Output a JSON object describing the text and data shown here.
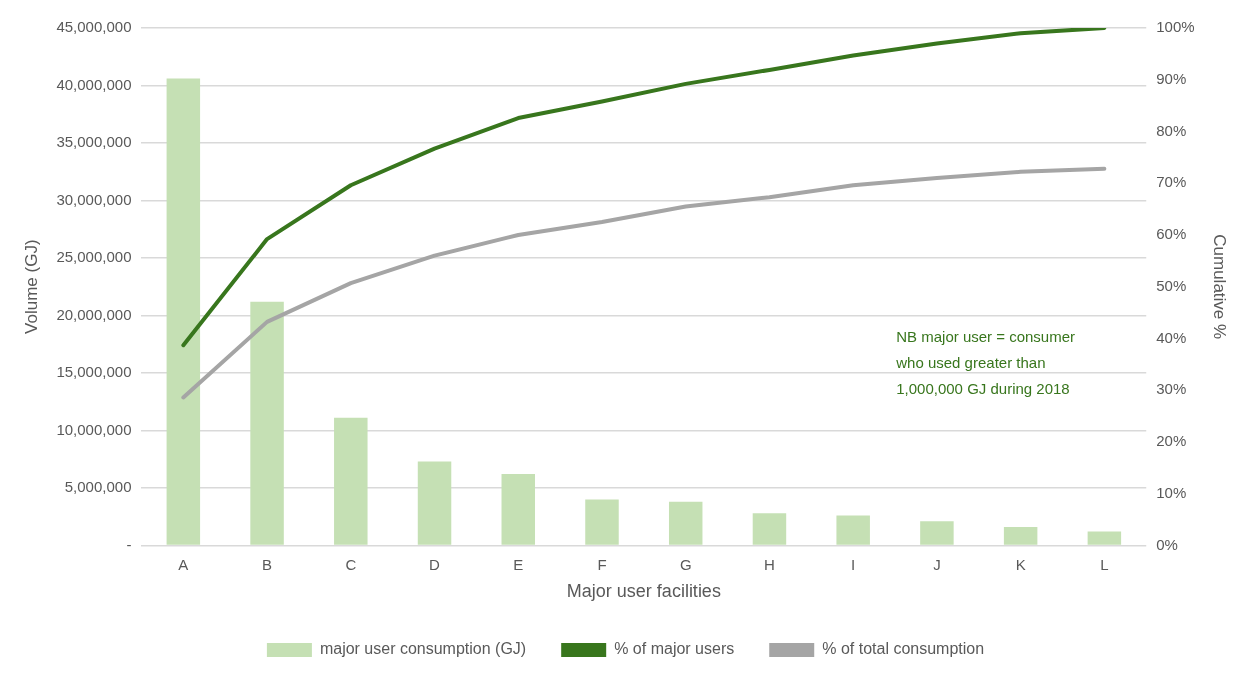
{
  "chart_data": {
    "type": "bar",
    "xlabel": "Major user facilities",
    "ylabel": "Volume (GJ)",
    "y2label": "Cumulative %",
    "categories": [
      "A",
      "B",
      "C",
      "D",
      "E",
      "F",
      "G",
      "H",
      "I",
      "J",
      "K",
      "L"
    ],
    "series": [
      {
        "name": "major user consumption (GJ)",
        "color": "#c5e0b4",
        "values": [
          40600000,
          21200000,
          11100000,
          7300000,
          6200000,
          4000000,
          3800000,
          2800000,
          2600000,
          2100000,
          1600000,
          1200000
        ]
      },
      {
        "name": "% of major users",
        "type": "line",
        "axis": "y2",
        "color": "#38761d",
        "values": [
          38.7,
          59.2,
          69.6,
          76.7,
          82.6,
          85.8,
          89.2,
          91.9,
          94.7,
          97,
          99,
          100
        ]
      },
      {
        "name": "% of total consumption",
        "type": "line",
        "axis": "y2",
        "color": "#a5a5a5",
        "values": [
          28.6,
          43.2,
          50.7,
          56,
          60,
          62.5,
          65.5,
          67.3,
          69.6,
          71,
          72.2,
          72.8
        ]
      }
    ],
    "ylim": [
      0,
      45000000
    ],
    "yticks": [
      {
        "value": 0,
        "label": "-"
      },
      {
        "value": 5000000,
        "label": "5,000,000"
      },
      {
        "value": 10000000,
        "label": "10,000,000"
      },
      {
        "value": 15000000,
        "label": "15,000,000"
      },
      {
        "value": 20000000,
        "label": "20,000,000"
      },
      {
        "value": 25000000,
        "label": "25,000,000"
      },
      {
        "value": 30000000,
        "label": "30,000,000"
      },
      {
        "value": 35000000,
        "label": "35,000,000"
      },
      {
        "value": 40000000,
        "label": "40,000,000"
      },
      {
        "value": 45000000,
        "label": "45,000,000"
      }
    ],
    "y2lim": [
      0,
      100
    ],
    "y2ticks": [
      {
        "value": 0,
        "label": "0%"
      },
      {
        "value": 10,
        "label": "10%"
      },
      {
        "value": 20,
        "label": "20%"
      },
      {
        "value": 30,
        "label": "30%"
      },
      {
        "value": 40,
        "label": "40%"
      },
      {
        "value": 50,
        "label": "50%"
      },
      {
        "value": 60,
        "label": "60%"
      },
      {
        "value": 70,
        "label": "70%"
      },
      {
        "value": 80,
        "label": "80%"
      },
      {
        "value": 90,
        "label": "90%"
      },
      {
        "value": 100,
        "label": "100%"
      }
    ],
    "annotations": [
      "NB major user = consumer\nwho used greater than\n1,000,000 GJ during 2018"
    ],
    "grid": "y",
    "legend": "bottom",
    "marker": "none",
    "line_style": "solid"
  }
}
